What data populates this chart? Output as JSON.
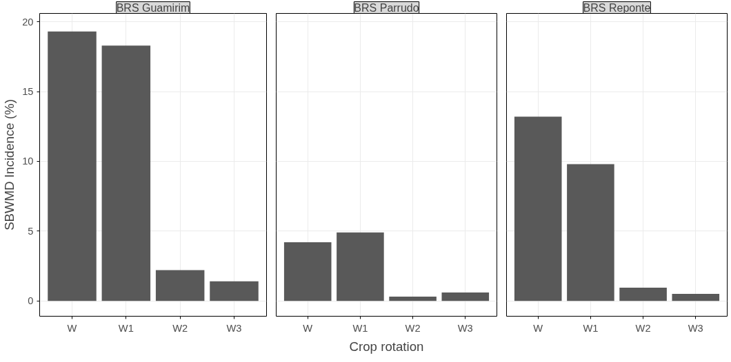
{
  "chart_data": [
    {
      "type": "bar",
      "title": "BRS Guamirim",
      "ylabel": "SBWMD Incidence (%)",
      "categories": [
        "W",
        "W1",
        "W2",
        "W3"
      ],
      "values": [
        19.3,
        18.3,
        2.2,
        1.4
      ],
      "color": "#595959",
      "ylim": [
        -1.1,
        20.6
      ],
      "yticks": [
        0,
        5,
        10,
        15,
        20
      ],
      "grid": true
    },
    {
      "type": "bar",
      "title": "BRS Parrudo",
      "xlabel": "Crop rotation",
      "categories": [
        "W",
        "W1",
        "W2",
        "W3"
      ],
      "values": [
        4.2,
        4.9,
        0.3,
        0.6
      ],
      "color": "#595959",
      "ylim": [
        -1.1,
        20.6
      ],
      "yticks": [
        0,
        5,
        10,
        15,
        20
      ],
      "grid": true,
      "tick_labels": "x"
    },
    {
      "type": "bar",
      "title": "BRS Reponte",
      "categories": [
        "W",
        "W1",
        "W2",
        "W3"
      ],
      "values": [
        13.2,
        9.8,
        0.95,
        0.5
      ],
      "color": "#595959",
      "ylim": [
        -1.1,
        20.6
      ],
      "yticks": [
        0,
        5,
        10,
        15,
        20
      ],
      "grid": true,
      "tick_labels": "x"
    }
  ]
}
